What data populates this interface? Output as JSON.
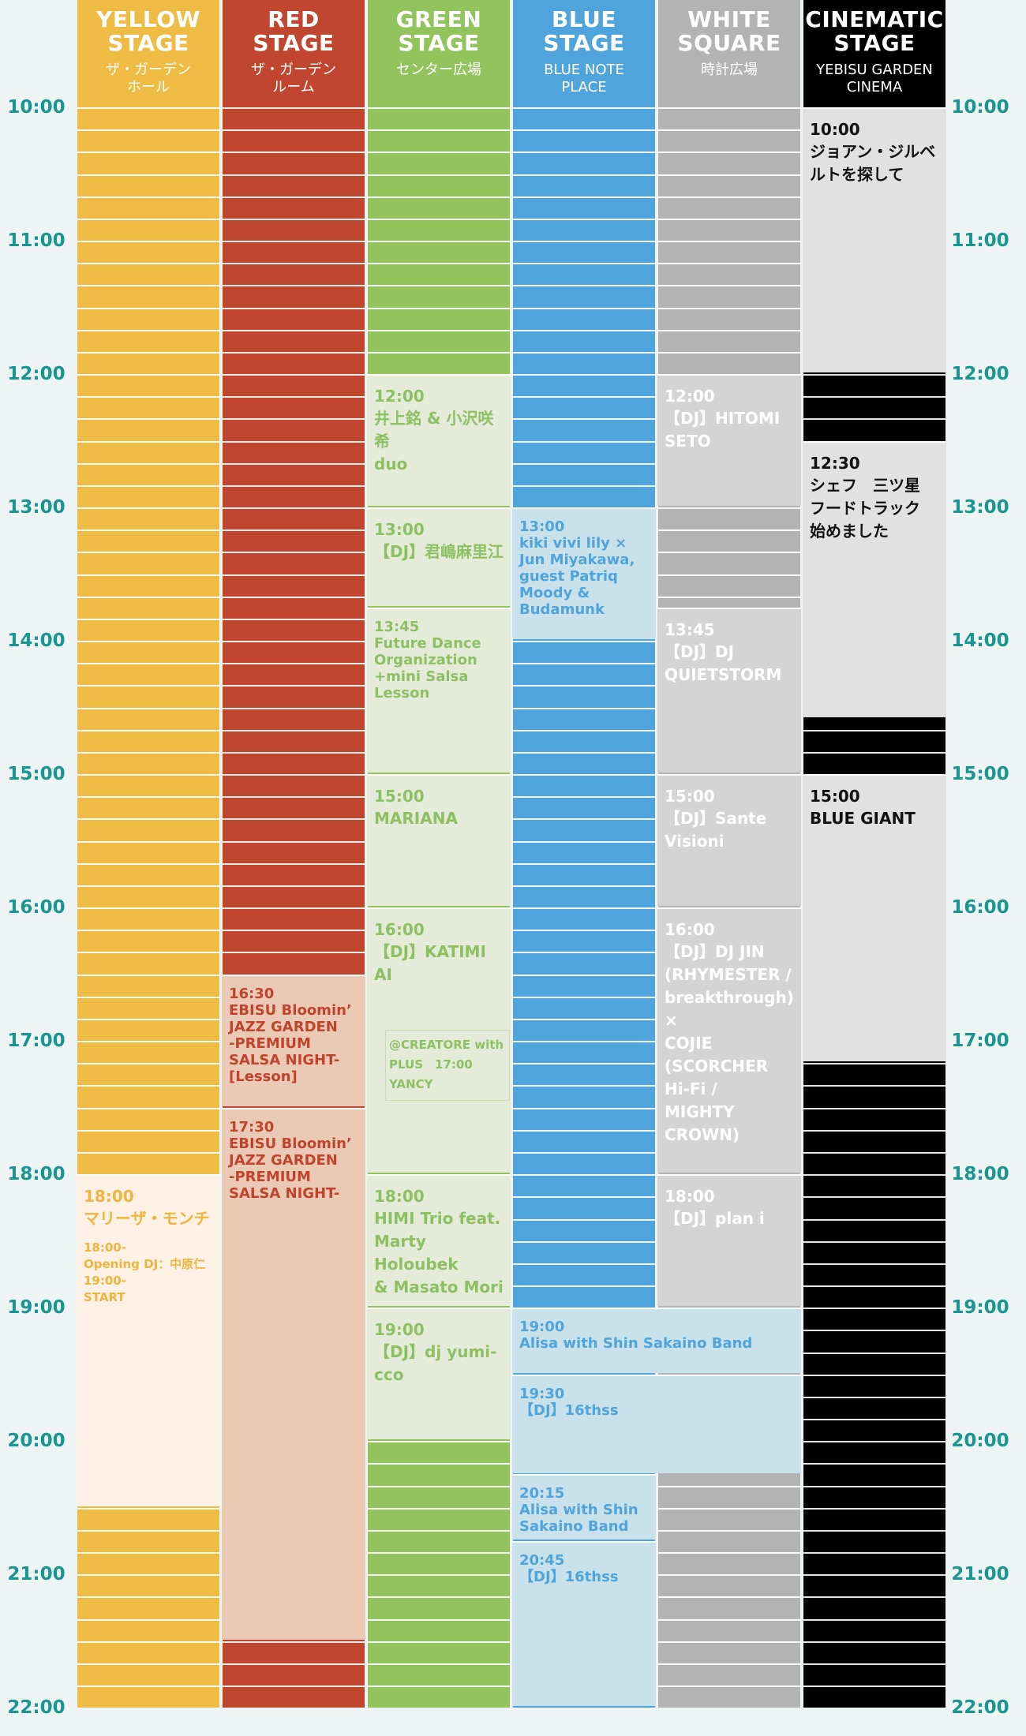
{
  "times": [
    "10:00",
    "11:00",
    "12:00",
    "13:00",
    "14:00",
    "15:00",
    "16:00",
    "17:00",
    "18:00",
    "19:00",
    "20:00",
    "21:00",
    "22:00"
  ],
  "stages": [
    {
      "name": "YELLOW\nSTAGE",
      "sub": "ザ・ガーデン\nホール",
      "color": "#eebb45",
      "name_color": "#ffffff",
      "sub_color": "#ffffff"
    },
    {
      "name": "RED\nSTAGE",
      "sub": "ザ・ガーデン\nルーム",
      "color": "#c1462f",
      "name_color": "#ffffff",
      "sub_color": "#ffffff"
    },
    {
      "name": "GREEN\nSTAGE",
      "sub": "センター広場",
      "color": "#93c35c",
      "name_color": "#ffffff",
      "sub_color": "#ffffff"
    },
    {
      "name": "BLUE\nSTAGE",
      "sub": "BLUE NOTE\nPLACE",
      "color": "#4ea4db",
      "name_color": "#ffffff",
      "sub_color": "#ffffff"
    },
    {
      "name": "WHITE\nSQUARE",
      "sub": "時計広場",
      "color": "#b3b3b3",
      "name_color": "#ffffff",
      "sub_color": "#ffffff"
    },
    {
      "name": "CINEMATIC\nSTAGE",
      "sub": "YEBISU GARDEN\nCINEMA",
      "color": "#000000",
      "name_color": "#ffffff",
      "sub_color": "#ffffff"
    }
  ],
  "events": [
    {
      "stage": 0,
      "span": 1,
      "start": "18:00",
      "end": "20:30",
      "time": "18:00",
      "title": "マリーザ・モンチ",
      "sub": "18:00-\nOpening DJ：中原仁\n19:00-\nSTART",
      "bg": "#fdf0e5",
      "fg": "#eeb53f"
    },
    {
      "stage": 1,
      "span": 1,
      "start": "16:30",
      "end": "17:30",
      "time": "16:30",
      "title": "EBISU Bloomin’\nJAZZ GARDEN\n-PREMIUM\nSALSA NIGHT-\n[Lesson]",
      "bg": "#eacab5",
      "fg": "#c0442c",
      "small": true
    },
    {
      "stage": 1,
      "span": 1,
      "start": "17:30",
      "end": "21:30",
      "time": "17:30",
      "title": "EBISU Bloomin’\nJAZZ GARDEN\n-PREMIUM\nSALSA NIGHT-",
      "bg": "#eacab5",
      "fg": "#c0442c",
      "small": true
    },
    {
      "stage": 2,
      "span": 1,
      "start": "12:00",
      "end": "13:00",
      "time": "12:00",
      "title": "井上銘 & 小沢咲希\nduo",
      "bg": "#e4ecd9",
      "fg": "#8cc063"
    },
    {
      "stage": 2,
      "span": 1,
      "start": "13:00",
      "end": "13:45",
      "time": "13:00",
      "title": "【DJ】君嶋麻里江",
      "bg": "#e4ecd9",
      "fg": "#8cc063"
    },
    {
      "stage": 2,
      "span": 1,
      "start": "13:45",
      "end": "15:00",
      "time": "13:45",
      "title": "Future Dance\nOrganization\n+mini Salsa Lesson",
      "bg": "#e4ecd9",
      "fg": "#8cc063",
      "small": true
    },
    {
      "stage": 2,
      "span": 1,
      "start": "15:00",
      "end": "16:00",
      "time": "15:00",
      "title": "MARIANA",
      "bg": "#e4ecd9",
      "fg": "#8cc063"
    },
    {
      "stage": 2,
      "span": 1,
      "start": "16:00",
      "end": "18:00",
      "time": "16:00",
      "title": "【DJ】KATIMI AI",
      "bg": "#e4ecd9",
      "fg": "#8cc063"
    },
    {
      "stage": 2,
      "span": 1,
      "start": "18:00",
      "end": "19:00",
      "time": "18:00",
      "title": "HIMI Trio feat.\nMarty Holoubek\n& Masato Mori",
      "bg": "#e4ecd9",
      "fg": "#8cc063"
    },
    {
      "stage": 2,
      "span": 1,
      "start": "19:00",
      "end": "20:00",
      "time": "19:00",
      "title": "【DJ】dj yumi-cco",
      "bg": "#e4ecd9",
      "fg": "#8cc063"
    },
    {
      "stage": 3,
      "span": 1,
      "start": "13:00",
      "end": "14:00",
      "time": "13:00",
      "title": "kiki vivi lily ×\nJun Miyakawa,\nguest Patriq\nMoody &\nBudamunk",
      "bg": "#c9e1ea",
      "fg": "#4ea4db",
      "small": true
    },
    {
      "stage": 3,
      "span": 2,
      "start": "19:00",
      "end": "19:30",
      "time": "19:00",
      "title": "Alisa with Shin Sakaino Band",
      "bg": "#c9e1ea",
      "fg": "#4ea4db",
      "small": true
    },
    {
      "stage": 3,
      "span": 2,
      "start": "19:30",
      "end": "20:15",
      "time": "19:30",
      "title": "【DJ】16thss",
      "bg": "#c9e1ea",
      "fg": "#4ea4db",
      "small": true
    },
    {
      "stage": 3,
      "span": 1,
      "start": "20:15",
      "end": "20:45",
      "time": "20:15",
      "title": "Alisa with Shin\nSakaino Band",
      "bg": "#c9e1ea",
      "fg": "#4ea4db",
      "small": true
    },
    {
      "stage": 3,
      "span": 1,
      "start": "20:45",
      "end": "22:00",
      "time": "20:45",
      "title": "【DJ】16thss",
      "bg": "#c9e1ea",
      "fg": "#4ea4db",
      "small": true
    },
    {
      "stage": 4,
      "span": 1,
      "start": "12:00",
      "end": "13:00",
      "time": "12:00",
      "title": "【DJ】HITOMI\nSETO",
      "bg": "#d4d4d4",
      "fg": "#ffffff"
    },
    {
      "stage": 4,
      "span": 1,
      "start": "13:45",
      "end": "15:00",
      "time": "13:45",
      "title": "【DJ】DJ\nQUIETSTORM",
      "bg": "#d4d4d4",
      "fg": "#ffffff"
    },
    {
      "stage": 4,
      "span": 1,
      "start": "15:00",
      "end": "16:00",
      "time": "15:00",
      "title": "【DJ】Sante\nVisioni",
      "bg": "#d4d4d4",
      "fg": "#ffffff"
    },
    {
      "stage": 4,
      "span": 1,
      "start": "16:00",
      "end": "18:00",
      "time": "16:00",
      "title": "【DJ】DJ JIN\n(RHYMESTER /\nbreakthrough) ×\nCOJIE\n(SCORCHER Hi-Fi /\nMIGHTY CROWN)",
      "bg": "#d4d4d4",
      "fg": "#ffffff"
    },
    {
      "stage": 4,
      "span": 1,
      "start": "18:00",
      "end": "19:00",
      "time": "18:00",
      "title": "【DJ】plan i",
      "bg": "#d4d4d4",
      "fg": "#ffffff"
    },
    {
      "stage": 5,
      "span": 1,
      "start": "10:00",
      "end": "12:00",
      "time": "10:00",
      "title": "ジョアン・ジルベ\nルトを探して",
      "bg": "#e1e1e1",
      "fg": "#111111"
    },
    {
      "stage": 5,
      "span": 1,
      "start": "12:30",
      "end": "14:35",
      "time": "12:30",
      "title": "シェフ　三ツ星\nフードトラック\n始めました",
      "bg": "#e1e1e1",
      "fg": "#111111"
    },
    {
      "stage": 5,
      "span": 1,
      "start": "15:00",
      "end": "17:10",
      "time": "15:00",
      "title": "BLUE GIANT",
      "bg": "#e1e1e1",
      "fg": "#111111"
    }
  ],
  "creatore": "@CREATORE with\nPLUS　17:00\nYANCY"
}
